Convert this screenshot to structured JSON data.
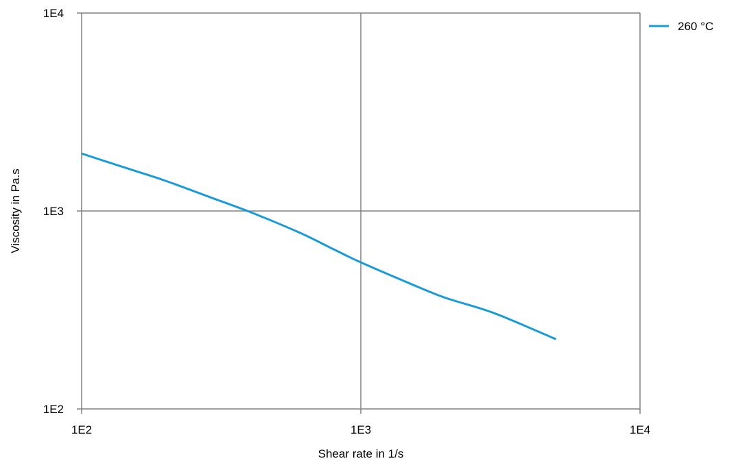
{
  "chart_data": {
    "type": "line",
    "xscale": "log",
    "yscale": "log",
    "xlim": [
      100,
      10000
    ],
    "ylim": [
      100,
      10000
    ],
    "xticks": [
      100,
      1000,
      10000
    ],
    "yticks": [
      100,
      1000,
      10000
    ],
    "xtick_labels": [
      "1E2",
      "1E3",
      "1E4"
    ],
    "ytick_labels": [
      "1E2",
      "1E3",
      "1E4"
    ],
    "xlabel": "Shear rate in  1/s",
    "ylabel": "Viscosity in  Pa.s",
    "grid": true,
    "legend_position": "top-right, outside plot area",
    "series": [
      {
        "name": "260 °C",
        "color": "#1a9bd7",
        "x": [
          100,
          150,
          200,
          300,
          400,
          600,
          800,
          1000,
          1500,
          2000,
          3000,
          5000
        ],
        "y": [
          1950,
          1620,
          1420,
          1150,
          990,
          780,
          640,
          550,
          430,
          365,
          305,
          225
        ]
      }
    ]
  }
}
